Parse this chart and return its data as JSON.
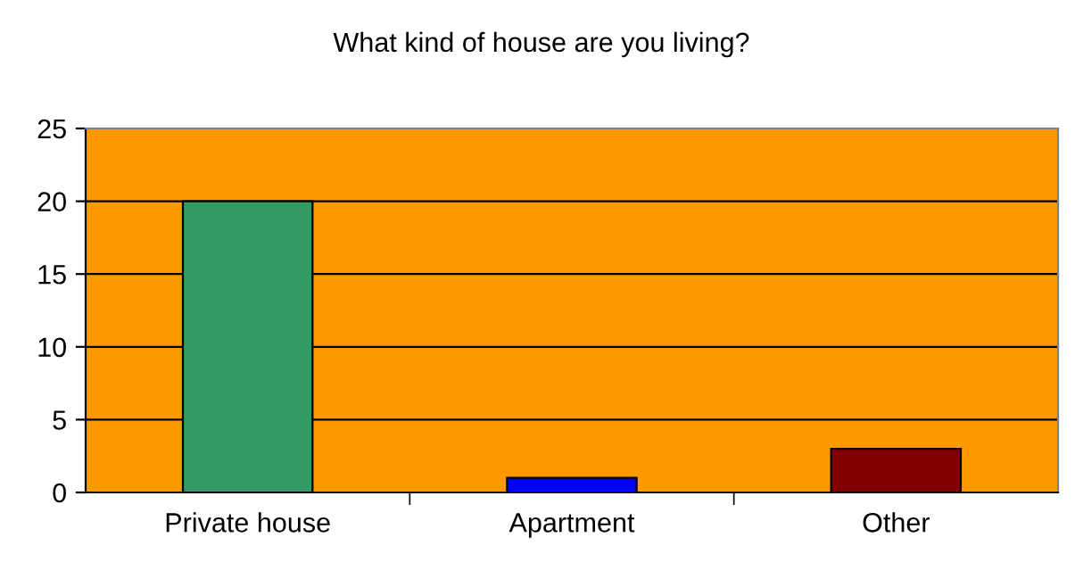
{
  "chart_data": {
    "type": "bar",
    "title": "What kind of house are you living?",
    "categories": [
      "Private house",
      "Apartment",
      "Other"
    ],
    "values": [
      20,
      1,
      3
    ],
    "colors": [
      "#339966",
      "#0000ff",
      "#800000"
    ],
    "ylim": [
      0,
      25
    ],
    "yticks": [
      0,
      5,
      10,
      15,
      20,
      25
    ],
    "grid": "y"
  }
}
